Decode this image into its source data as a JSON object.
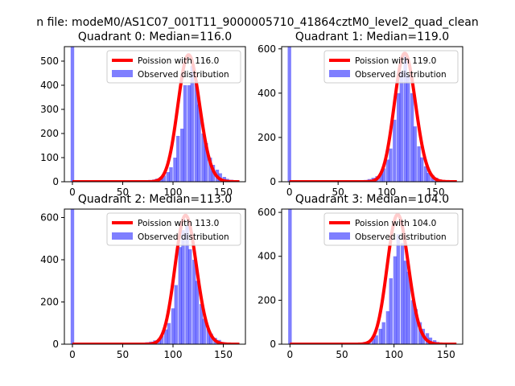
{
  "figure": {
    "suptitle": "n file: modeM0/AS1C07_001T11_9000005710_41864cztM0_level2_quad_clean"
  },
  "chart_data": [
    {
      "type": "bar",
      "title": "Quadrant 0: Median=116.0",
      "xlim": [
        -8,
        172
      ],
      "ylim": [
        0,
        560
      ],
      "xticks": [
        0,
        50,
        100,
        150
      ],
      "yticks": [
        0,
        100,
        200,
        300,
        400,
        500
      ],
      "legend": {
        "placement": "top-right",
        "line_label": "Poission with 116.0",
        "hist_label": "Observed distribution"
      },
      "poisson_mean": 116.0,
      "poisson_peak": 526,
      "bin_width": 3.5,
      "bars": [
        [
          0,
          560
        ],
        [
          17,
          2
        ],
        [
          35,
          1
        ],
        [
          52,
          1
        ],
        [
          66,
          2
        ],
        [
          70,
          3
        ],
        [
          74,
          5
        ],
        [
          77,
          7
        ],
        [
          81,
          9
        ],
        [
          84,
          13
        ],
        [
          88,
          20
        ],
        [
          91,
          26
        ],
        [
          95,
          40
        ],
        [
          98,
          60
        ],
        [
          102,
          100
        ],
        [
          105,
          190
        ],
        [
          109,
          220
        ],
        [
          112,
          400
        ],
        [
          116,
          400
        ],
        [
          119,
          480
        ],
        [
          123,
          420
        ],
        [
          126,
          320
        ],
        [
          130,
          200
        ],
        [
          133,
          160
        ],
        [
          137,
          100
        ],
        [
          140,
          70
        ],
        [
          144,
          50
        ],
        [
          147,
          35
        ],
        [
          151,
          20
        ],
        [
          154,
          12
        ],
        [
          158,
          8
        ],
        [
          161,
          4
        ]
      ]
    },
    {
      "type": "bar",
      "title": "Quadrant 1: Median=119.0",
      "xlim": [
        -8,
        178
      ],
      "ylim": [
        0,
        610
      ],
      "xticks": [
        0,
        50,
        100,
        150
      ],
      "yticks": [
        0,
        200,
        400,
        600
      ],
      "legend": {
        "placement": "top-right",
        "line_label": "Poission with 119.0",
        "hist_label": "Observed distribution"
      },
      "poisson_mean": 119.0,
      "poisson_peak": 580,
      "bin_width": 3.6,
      "bars": [
        [
          0,
          610
        ],
        [
          40,
          2
        ],
        [
          62,
          2
        ],
        [
          66,
          3
        ],
        [
          70,
          4
        ],
        [
          74,
          6
        ],
        [
          78,
          8
        ],
        [
          82,
          12
        ],
        [
          86,
          18
        ],
        [
          90,
          25
        ],
        [
          94,
          40
        ],
        [
          97,
          60
        ],
        [
          101,
          100
        ],
        [
          104,
          150
        ],
        [
          108,
          280
        ],
        [
          112,
          400
        ],
        [
          115,
          500
        ],
        [
          119,
          570
        ],
        [
          122,
          480
        ],
        [
          126,
          400
        ],
        [
          129,
          250
        ],
        [
          133,
          160
        ],
        [
          136,
          110
        ],
        [
          140,
          70
        ],
        [
          143,
          40
        ],
        [
          147,
          30
        ],
        [
          151,
          18
        ],
        [
          155,
          10
        ],
        [
          159,
          6
        ]
      ]
    },
    {
      "type": "bar",
      "title": "Quadrant 2: Median=113.0",
      "xlim": [
        -8,
        172
      ],
      "ylim": [
        0,
        640
      ],
      "xticks": [
        0,
        50,
        100,
        150
      ],
      "yticks": [
        0,
        200,
        400,
        600
      ],
      "legend": {
        "placement": "top-right",
        "line_label": "Poission with 113.0",
        "hist_label": "Observed distribution"
      },
      "poisson_mean": 113.0,
      "poisson_peak": 610,
      "bin_width": 3.5,
      "bars": [
        [
          0,
          640
        ],
        [
          35,
          2
        ],
        [
          55,
          2
        ],
        [
          60,
          3
        ],
        [
          65,
          4
        ],
        [
          70,
          6
        ],
        [
          74,
          9
        ],
        [
          78,
          12
        ],
        [
          82,
          18
        ],
        [
          86,
          25
        ],
        [
          89,
          40
        ],
        [
          93,
          70
        ],
        [
          96,
          100
        ],
        [
          100,
          170
        ],
        [
          103,
          280
        ],
        [
          107,
          460
        ],
        [
          110,
          540
        ],
        [
          114,
          560
        ],
        [
          117,
          450
        ],
        [
          121,
          400
        ],
        [
          124,
          300
        ],
        [
          128,
          190
        ],
        [
          131,
          120
        ],
        [
          135,
          75
        ],
        [
          138,
          50
        ],
        [
          142,
          30
        ],
        [
          146,
          20
        ],
        [
          150,
          10
        ],
        [
          154,
          5
        ]
      ]
    },
    {
      "type": "bar",
      "title": "Quadrant 3: Median=104.0",
      "xlim": [
        -8,
        166
      ],
      "ylim": [
        0,
        615
      ],
      "xticks": [
        0,
        50,
        100,
        150
      ],
      "yticks": [
        0,
        200,
        400,
        600
      ],
      "legend": {
        "placement": "top-right",
        "line_label": "Poission with 104.0",
        "hist_label": "Observed distribution"
      },
      "poisson_mean": 104.0,
      "poisson_peak": 590,
      "bin_width": 3.4,
      "bars": [
        [
          0,
          615
        ],
        [
          40,
          2
        ],
        [
          55,
          2
        ],
        [
          60,
          3
        ],
        [
          64,
          5
        ],
        [
          68,
          7
        ],
        [
          72,
          10
        ],
        [
          76,
          15
        ],
        [
          80,
          25
        ],
        [
          83,
          40
        ],
        [
          87,
          70
        ],
        [
          90,
          100
        ],
        [
          94,
          150
        ],
        [
          97,
          300
        ],
        [
          101,
          400
        ],
        [
          104,
          500
        ],
        [
          108,
          460
        ],
        [
          111,
          380
        ],
        [
          114,
          330
        ],
        [
          118,
          200
        ],
        [
          121,
          160
        ],
        [
          125,
          100
        ],
        [
          128,
          70
        ],
        [
          132,
          50
        ],
        [
          135,
          30
        ],
        [
          139,
          18
        ],
        [
          142,
          10
        ]
      ]
    }
  ]
}
